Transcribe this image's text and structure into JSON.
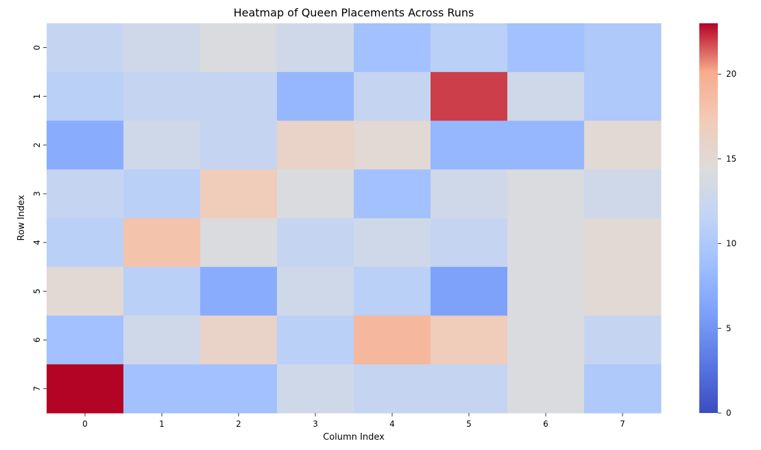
{
  "chart_data": {
    "type": "heatmap",
    "title": "Heatmap of Queen Placements Across Runs",
    "xlabel": "Column Index",
    "ylabel": "Row Index",
    "x_categories": [
      "0",
      "1",
      "2",
      "3",
      "4",
      "5",
      "6",
      "7"
    ],
    "y_categories": [
      "0",
      "1",
      "2",
      "3",
      "4",
      "5",
      "6",
      "7"
    ],
    "values": [
      [
        12,
        13,
        14,
        13,
        9,
        11,
        9,
        10
      ],
      [
        11,
        12,
        12,
        8,
        12,
        22,
        13,
        10
      ],
      [
        7,
        13,
        12,
        16,
        15,
        8,
        8,
        15
      ],
      [
        12,
        11,
        17,
        14,
        9,
        13,
        14,
        13
      ],
      [
        11,
        18,
        14,
        12,
        13,
        12,
        14,
        15
      ],
      [
        15,
        11,
        7,
        13,
        11,
        6,
        14,
        15
      ],
      [
        9,
        13,
        16,
        11,
        19,
        17,
        14,
        12
      ],
      [
        23,
        9,
        9,
        13,
        12,
        12,
        14,
        10
      ]
    ],
    "colorbar": {
      "colormap": "coolwarm",
      "vmin": 0,
      "vmax": 23,
      "ticks": [
        0,
        5,
        10,
        15,
        20
      ]
    },
    "grid": false,
    "legend": "colorbar-right"
  }
}
